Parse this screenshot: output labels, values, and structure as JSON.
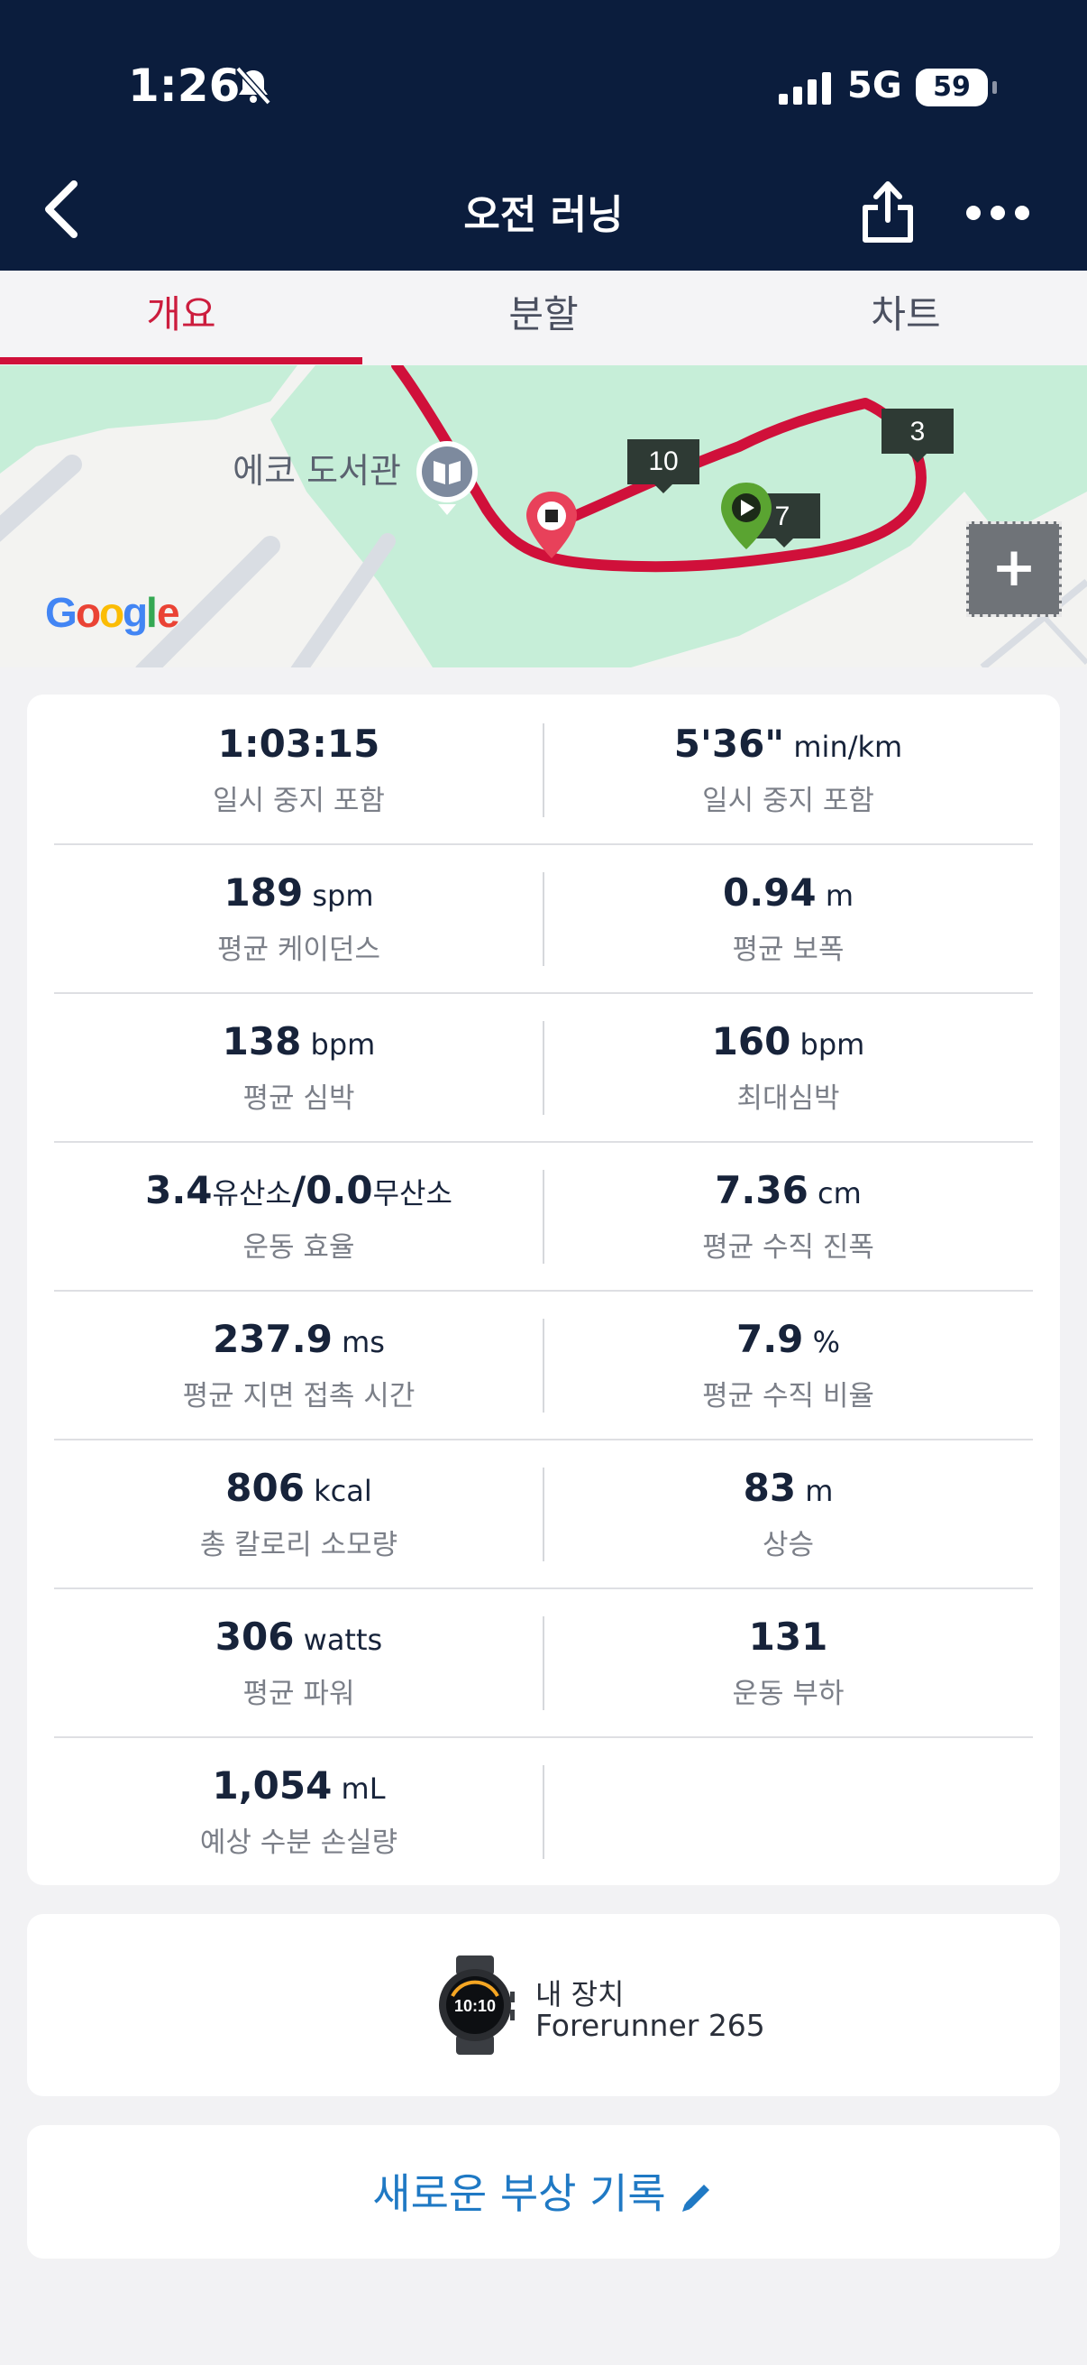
{
  "status_bar": {
    "time": "1:26",
    "network": "5G",
    "battery": "59"
  },
  "header": {
    "title": "오전 러닝"
  },
  "tabs": [
    {
      "label": "개요",
      "active": true
    },
    {
      "label": "분할",
      "active": false
    },
    {
      "label": "차트",
      "active": false
    }
  ],
  "map": {
    "place_label": "에코 도서관",
    "brand": "Google",
    "markers": [
      "10",
      "3",
      "7"
    ],
    "zoom_symbol": "+"
  },
  "stats": [
    {
      "left": {
        "value": "1:03:15",
        "unit": "",
        "label": "일시 중지 포함"
      },
      "right": {
        "value": "5'36\"",
        "unit": " min/km",
        "label": "일시 중지 포함"
      }
    },
    {
      "left": {
        "value": "189",
        "unit": " spm",
        "label": "평균 케이던스"
      },
      "right": {
        "value": "0.94",
        "unit": " m",
        "label": "평균 보폭"
      }
    },
    {
      "left": {
        "value": "138",
        "unit": " bpm",
        "label": "평균 심박"
      },
      "right": {
        "value": "160",
        "unit": " bpm",
        "label": "최대심박"
      }
    },
    {
      "left": {
        "value": "3.4",
        "unit": "유산소",
        "value2": "/0.0",
        "unit2": "무산소",
        "label": "운동 효율"
      },
      "right": {
        "value": "7.36",
        "unit": " cm",
        "label": "평균 수직 진폭"
      }
    },
    {
      "left": {
        "value": "237.9",
        "unit": " ms",
        "label": "평균 지면 접촉 시간"
      },
      "right": {
        "value": "7.9",
        "unit": " %",
        "label": "평균 수직 비율"
      }
    },
    {
      "left": {
        "value": "806",
        "unit": " kcal",
        "label": "총 칼로리 소모량"
      },
      "right": {
        "value": "83",
        "unit": " m",
        "label": "상승"
      }
    },
    {
      "left": {
        "value": "306",
        "unit": " watts",
        "label": "평균 파워"
      },
      "right": {
        "value": "131",
        "unit": "",
        "label": "운동 부하"
      }
    },
    {
      "left": {
        "value": "1,054",
        "unit": " mL",
        "label": "예상 수분 손실량"
      }
    }
  ],
  "device": {
    "label": "내 장치",
    "name": "Forerunner 265",
    "watch_face": "10:10"
  },
  "injury": {
    "label": "새로운 부상 기록"
  },
  "colors": {
    "header_bg": "#0b1d3d",
    "accent": "#d0103a",
    "route": "#d0103a",
    "link": "#1f79c4",
    "map_green": "#c6eed8"
  }
}
